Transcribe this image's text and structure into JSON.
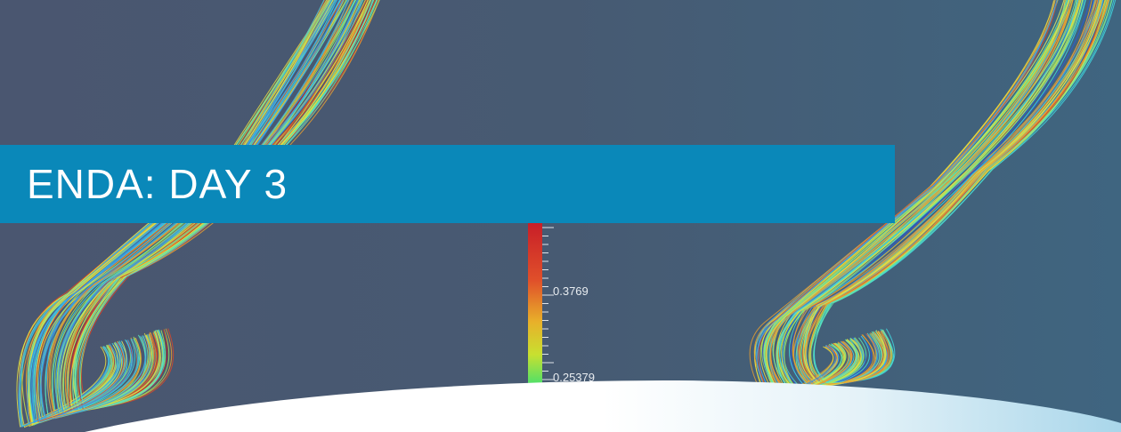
{
  "banner": {
    "title": "ENDA: DAY 3"
  },
  "colorbar": {
    "labels": [
      "0.3769",
      "0.25379"
    ]
  }
}
